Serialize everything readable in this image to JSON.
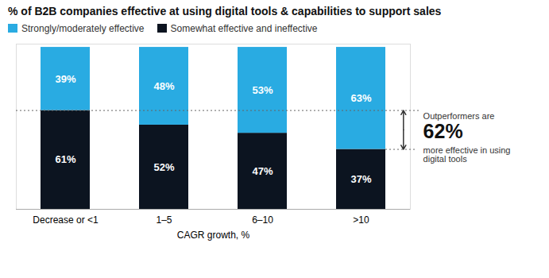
{
  "chart_data": {
    "type": "bar",
    "stacked": true,
    "title": "% of B2B companies effective at using digital tools & capabilities to support sales",
    "categories": [
      "Decrease or <1",
      "1–5",
      "6–10",
      ">10"
    ],
    "series": [
      {
        "name": "Strongly/moderately effective",
        "color": "#29abe2",
        "values": [
          39,
          48,
          53,
          63
        ],
        "value_labels": [
          "39%",
          "48%",
          "53%",
          "63%"
        ]
      },
      {
        "name": "Somewhat effective and ineffective",
        "color": "#0c1420",
        "values": [
          61,
          52,
          47,
          37
        ],
        "value_labels": [
          "61%",
          "52%",
          "47%",
          "37%"
        ]
      }
    ],
    "xlabel": "CAGR growth, %",
    "ylim": [
      0,
      102
    ],
    "data_labels": true,
    "tick_labels": "x",
    "grid": false,
    "legend": "top",
    "annotations": [
      {
        "text": "Outperformers are"
      },
      {
        "text": "62%"
      },
      {
        "text": "more effective in using\ndigital tools"
      }
    ],
    "arrow": {
      "y_from": 61,
      "y_to": 37
    }
  }
}
